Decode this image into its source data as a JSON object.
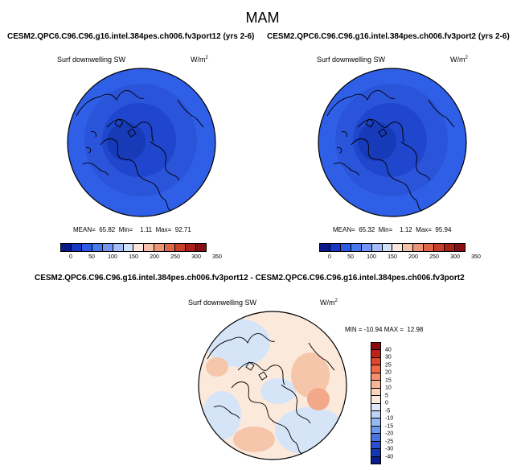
{
  "page": {
    "season": "MAM"
  },
  "panels": [
    {
      "case_title": "CESM2.QPC6.C96.C96.g16.intel.384pes.ch006.fv3port12 (yrs 2-6)",
      "variable": "Surf downwelling SW",
      "units_base": "W/m",
      "units_exp": "2",
      "stats": "MEAN=  65.82  Min=    1.11  Max=  92.71"
    },
    {
      "case_title": "CESM2.QPC6.C96.C96.g16.intel.384pes.ch006.fv3port2 (yrs 2-6)",
      "variable": "Surf downwelling SW",
      "units_base": "W/m",
      "units_exp": "2",
      "stats": "MEAN=  65.32  Min=    1.12  Max=  95.94"
    }
  ],
  "diff": {
    "title": "CESM2.QPC6.C96.C96.g16.intel.384pes.ch006.fv3port12 - CESM2.QPC6.C96.C96.g16.intel.384pes.ch006.fv3port2",
    "variable": "Surf downwelling SW",
    "units_base": "W/m",
    "units_exp": "2",
    "stats": "MIN = -10.94 MAX =  12.98"
  },
  "colorbar_abs": {
    "ticks": [
      "0",
      "50",
      "100",
      "150",
      "200",
      "250",
      "300",
      "350"
    ],
    "colors": [
      "#0a1a8c",
      "#1638c4",
      "#2d5be6",
      "#4a78f0",
      "#7396f5",
      "#a3bdf8",
      "#d0e0fa",
      "#f6e6dc",
      "#f5c0a8",
      "#ee9476",
      "#e0664a",
      "#c8402c",
      "#a8221a",
      "#881010"
    ]
  },
  "colorbar_diff": {
    "ticks": [
      "40",
      "30",
      "25",
      "20",
      "15",
      "10",
      "5",
      "0",
      "-5",
      "-10",
      "-15",
      "-20",
      "-25",
      "-30",
      "-40"
    ],
    "colors": [
      "#8b0a0a",
      "#c0221a",
      "#e0462e",
      "#f06a48",
      "#f5906e",
      "#f8b496",
      "#fad4bc",
      "#fbeadc",
      "#dce8fa",
      "#bcd3f6",
      "#98baf2",
      "#6e98ec",
      "#4a74e2",
      "#2a4ed0",
      "#1636b0",
      "#0a1c8a"
    ]
  },
  "map_colors": {
    "outer": "#2f5fe6",
    "mid": "#2a54da",
    "inner": "#1f46cc",
    "core": "#173ab8",
    "diff_bg": "#fbeadc",
    "diff_neg": "#d6e4f8",
    "diff_pos": "#f6c6aa",
    "diff_pos_strong": "#f1a989"
  }
}
